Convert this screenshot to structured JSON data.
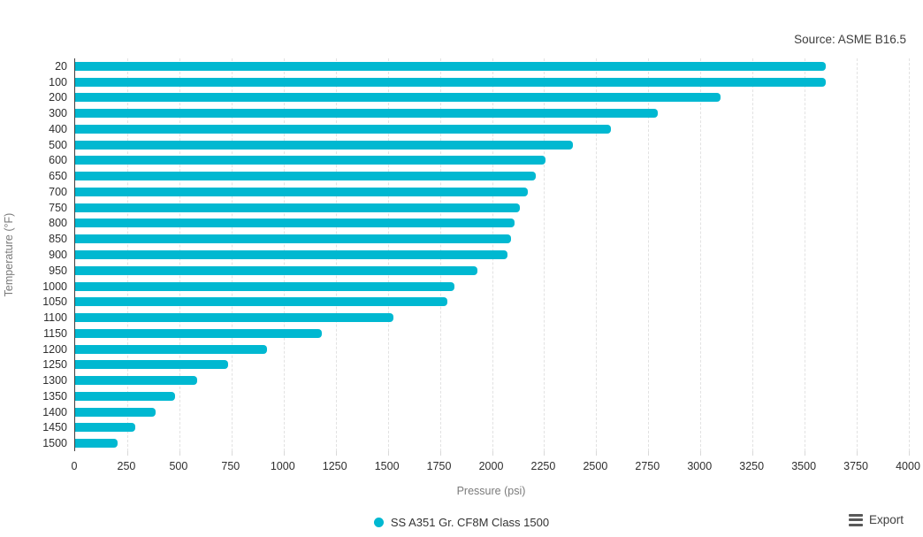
{
  "source_note": "Source: ASME B16.5",
  "legend": {
    "label": "SS A351 Gr. CF8M Class 1500"
  },
  "export": {
    "label": "Export"
  },
  "colors": {
    "bar": "#00b8d1",
    "gridline": "#e2e2e2",
    "axis_line": "#3f3f3f",
    "tick_text": "#2e2e2e",
    "axis_title_text": "#7b7b7b"
  },
  "chart_data": {
    "type": "bar",
    "orientation": "horizontal",
    "source": "Source: ASME B16.5",
    "series_name": "SS A351 Gr. CF8M Class 1500",
    "categories": [
      "20",
      "100",
      "200",
      "300",
      "400",
      "500",
      "600",
      "650",
      "700",
      "750",
      "800",
      "850",
      "900",
      "950",
      "1000",
      "1050",
      "1100",
      "1150",
      "1200",
      "1250",
      "1300",
      "1350",
      "1400",
      "1450",
      "1500"
    ],
    "values": [
      3600,
      3600,
      3095,
      2795,
      2570,
      2390,
      2255,
      2210,
      2170,
      2135,
      2110,
      2090,
      2075,
      1930,
      1820,
      1785,
      1525,
      1185,
      920,
      735,
      585,
      480,
      385,
      290,
      205
    ],
    "xlabel": "Pressure (psi)",
    "ylabel": "Temperature (°F)",
    "xlim": [
      0,
      4000
    ],
    "x_tick_step": 250,
    "grid": "vertical-dashed",
    "legend_position": "bottom-center"
  }
}
